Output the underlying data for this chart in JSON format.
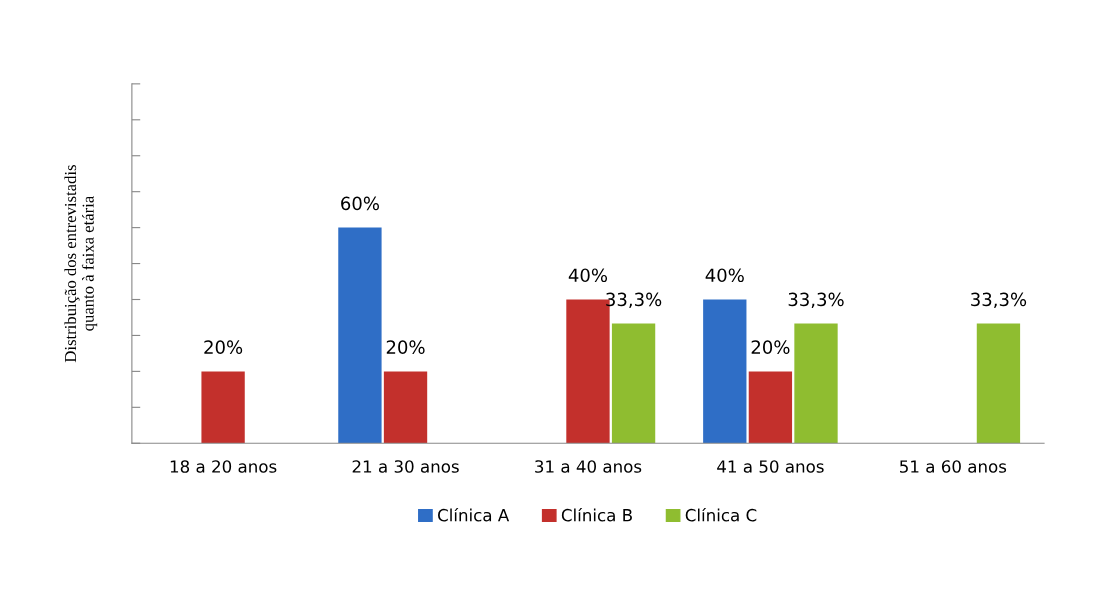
{
  "chart_data": {
    "type": "bar",
    "ylabel": "Distribuição dos entrevistadis\nquanto à faixa etária",
    "categories": [
      "18 a 20 anos",
      "21 a 30 anos",
      "31 a 40 anos",
      "41 a 50 anos",
      "51 a 60 anos"
    ],
    "series": [
      {
        "name": "Clínica A",
        "color": "#2f6ec6",
        "values": [
          null,
          60,
          null,
          40,
          null
        ],
        "value_labels": [
          null,
          "60%",
          null,
          "40%",
          null
        ]
      },
      {
        "name": "Clínica B",
        "color": "#c3302c",
        "values": [
          20,
          20,
          40,
          20,
          null
        ],
        "value_labels": [
          "20%",
          "20%",
          "40%",
          "20%",
          null
        ]
      },
      {
        "name": "Clínica C",
        "color": "#8fbd30",
        "values": [
          null,
          null,
          33.3,
          33.3,
          33.3
        ],
        "value_labels": [
          null,
          null,
          "33,3%",
          "33,3%",
          "33,3%"
        ]
      }
    ],
    "ylim": [
      0,
      100
    ],
    "yticks": [
      {
        "value": 0,
        "label": null
      },
      {
        "value": 10,
        "label": null
      },
      {
        "value": 20,
        "label": null
      },
      {
        "value": 30,
        "label": null
      },
      {
        "value": 40,
        "label": null
      },
      {
        "value": 50,
        "label": null
      },
      {
        "value": 60,
        "label": null
      },
      {
        "value": 70,
        "label": null
      },
      {
        "value": 80,
        "label": null
      },
      {
        "value": 90,
        "label": null
      },
      {
        "value": 100,
        "label": null
      }
    ],
    "tick_labels": "x",
    "grid": false,
    "legend": "bottom"
  }
}
